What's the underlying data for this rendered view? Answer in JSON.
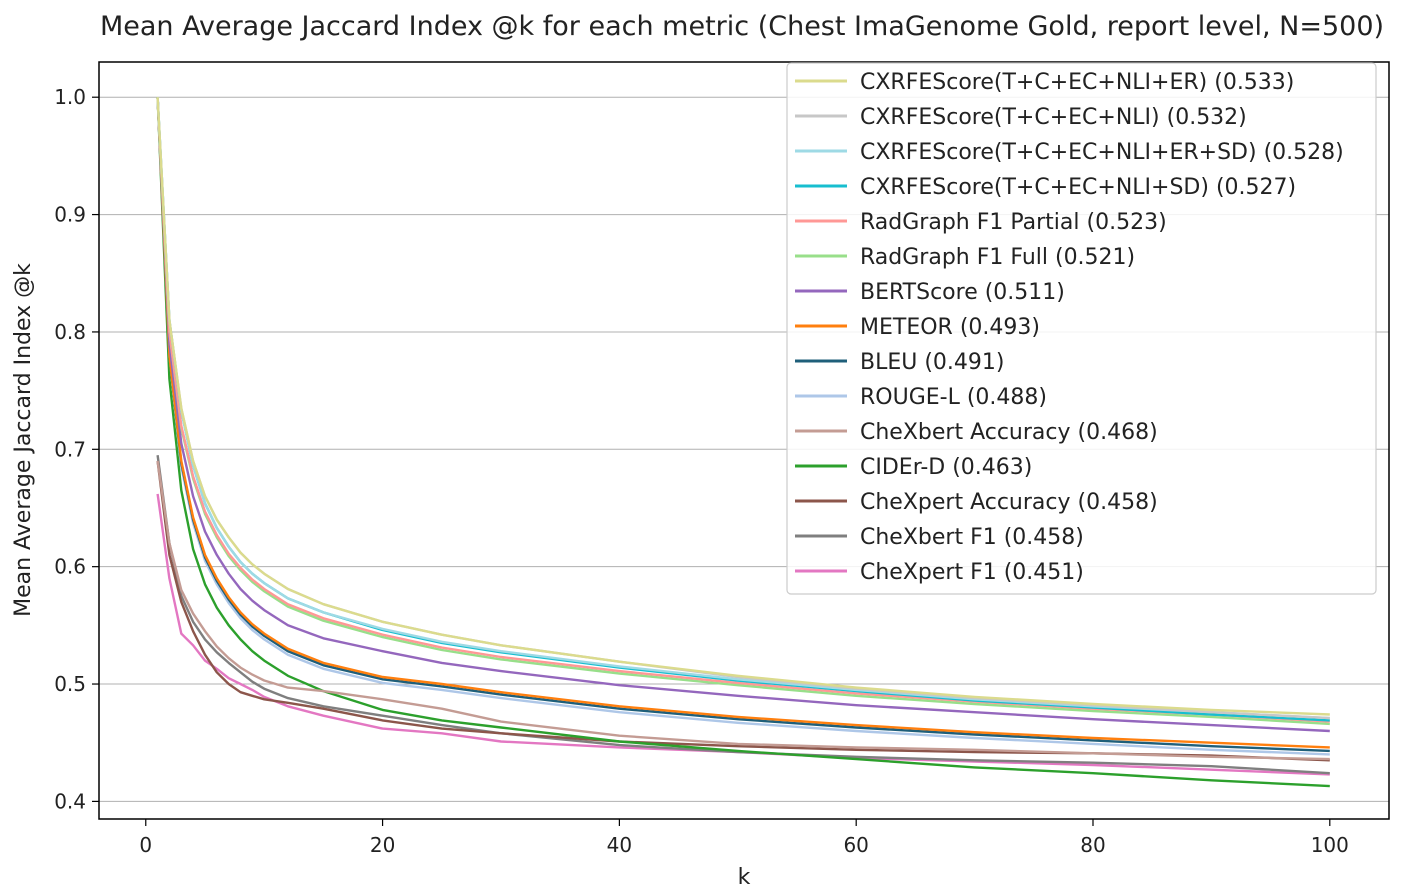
{
  "chart_data": {
    "type": "line",
    "title": "Mean Average Jaccard Index @k for each metric (Chest ImaGenome Gold, report level, N=500)",
    "xlabel": "k",
    "ylabel": "Mean Average Jaccard Index @k",
    "xlim": [
      -3.95,
      105
    ],
    "ylim": [
      0.385,
      1.03
    ],
    "xticks": [
      0,
      20,
      40,
      60,
      80,
      100
    ],
    "xtick_labels": [
      "0",
      "20",
      "40",
      "60",
      "80",
      "100"
    ],
    "yticks": [
      0.4,
      0.5,
      0.6,
      0.7,
      0.8,
      0.9,
      1.0
    ],
    "ytick_labels": [
      "0.4",
      "0.5",
      "0.6",
      "0.7",
      "0.8",
      "0.9",
      "1.0"
    ],
    "grid": "horizontal",
    "legend_position": "top-right",
    "x": [
      1,
      2,
      3,
      4,
      5,
      6,
      7,
      8,
      9,
      10,
      12,
      15,
      20,
      25,
      30,
      40,
      50,
      60,
      70,
      80,
      90,
      100
    ],
    "series": [
      {
        "name": "CXRFEScore(T+C+EC+NLI+ER) (0.533)",
        "color": "#dbdb8d",
        "values": [
          1.0,
          0.81,
          0.735,
          0.69,
          0.66,
          0.64,
          0.625,
          0.612,
          0.602,
          0.594,
          0.581,
          0.568,
          0.553,
          0.542,
          0.533,
          0.519,
          0.507,
          0.497,
          0.489,
          0.483,
          0.478,
          0.474
        ]
      },
      {
        "name": "CXRFEScore(T+C+EC+NLI) (0.532)",
        "color": "#c7c7c7",
        "values": [
          1.0,
          0.81,
          0.735,
          0.69,
          0.66,
          0.64,
          0.625,
          0.612,
          0.602,
          0.594,
          0.581,
          0.568,
          0.553,
          0.542,
          0.533,
          0.519,
          0.506,
          0.496,
          0.488,
          0.482,
          0.476,
          0.471
        ]
      },
      {
        "name": "CXRFEScore(T+C+EC+NLI+ER+SD) (0.528)",
        "color": "#9edae5",
        "values": [
          1.0,
          0.81,
          0.733,
          0.686,
          0.654,
          0.633,
          0.617,
          0.604,
          0.594,
          0.586,
          0.573,
          0.561,
          0.547,
          0.536,
          0.528,
          0.515,
          0.504,
          0.495,
          0.487,
          0.481,
          0.476,
          0.471
        ]
      },
      {
        "name": "CXRFEScore(T+C+EC+NLI+SD) (0.527)",
        "color": "#17becf",
        "values": [
          1.0,
          0.81,
          0.733,
          0.686,
          0.654,
          0.633,
          0.617,
          0.604,
          0.594,
          0.586,
          0.573,
          0.561,
          0.546,
          0.535,
          0.527,
          0.514,
          0.503,
          0.494,
          0.486,
          0.48,
          0.474,
          0.469
        ]
      },
      {
        "name": "RadGraph F1 Partial (0.523)",
        "color": "#ff9896",
        "values": [
          1.0,
          0.8,
          0.72,
          0.677,
          0.647,
          0.627,
          0.611,
          0.599,
          0.589,
          0.581,
          0.568,
          0.556,
          0.542,
          0.531,
          0.523,
          0.511,
          0.501,
          0.492,
          0.485,
          0.479,
          0.474,
          0.468
        ]
      },
      {
        "name": "RadGraph F1 Full (0.521)",
        "color": "#98df8a",
        "values": [
          1.0,
          0.8,
          0.718,
          0.675,
          0.645,
          0.625,
          0.609,
          0.597,
          0.587,
          0.579,
          0.566,
          0.554,
          0.54,
          0.529,
          0.521,
          0.509,
          0.499,
          0.49,
          0.483,
          0.477,
          0.472,
          0.466
        ]
      },
      {
        "name": "BERTScore (0.511)",
        "color": "#9467bd",
        "values": [
          1.0,
          0.79,
          0.705,
          0.66,
          0.63,
          0.61,
          0.594,
          0.581,
          0.571,
          0.563,
          0.55,
          0.539,
          0.528,
          0.518,
          0.511,
          0.499,
          0.49,
          0.482,
          0.476,
          0.47,
          0.465,
          0.46
        ]
      },
      {
        "name": "METEOR (0.493)",
        "color": "#ff7f0e",
        "values": [
          1.0,
          0.78,
          0.69,
          0.642,
          0.61,
          0.59,
          0.574,
          0.561,
          0.551,
          0.543,
          0.53,
          0.518,
          0.506,
          0.5,
          0.493,
          0.481,
          0.472,
          0.465,
          0.459,
          0.454,
          0.45,
          0.446
        ]
      },
      {
        "name": "BLEU (0.491)",
        "color": "#1f5f7a",
        "values": [
          1.0,
          0.78,
          0.688,
          0.64,
          0.608,
          0.588,
          0.572,
          0.559,
          0.549,
          0.541,
          0.528,
          0.516,
          0.504,
          0.498,
          0.491,
          0.479,
          0.47,
          0.463,
          0.457,
          0.452,
          0.447,
          0.443
        ]
      },
      {
        "name": "ROUGE-L (0.488)",
        "color": "#aec7e8",
        "values": [
          1.0,
          0.78,
          0.685,
          0.637,
          0.605,
          0.585,
          0.569,
          0.556,
          0.546,
          0.538,
          0.525,
          0.513,
          0.501,
          0.495,
          0.488,
          0.476,
          0.467,
          0.46,
          0.454,
          0.449,
          0.444,
          0.44
        ]
      },
      {
        "name": "CheXbert Accuracy (0.468)",
        "color": "#c49c94",
        "values": [
          0.69,
          0.62,
          0.58,
          0.56,
          0.545,
          0.532,
          0.522,
          0.514,
          0.508,
          0.503,
          0.497,
          0.494,
          0.487,
          0.479,
          0.468,
          0.456,
          0.449,
          0.446,
          0.444,
          0.441,
          0.438,
          0.436
        ]
      },
      {
        "name": "CIDEr-D (0.463)",
        "color": "#2ca02c",
        "values": [
          1.0,
          0.76,
          0.665,
          0.615,
          0.585,
          0.565,
          0.55,
          0.538,
          0.528,
          0.52,
          0.507,
          0.494,
          0.478,
          0.469,
          0.463,
          0.451,
          0.443,
          0.436,
          0.429,
          0.424,
          0.418,
          0.413
        ]
      },
      {
        "name": "CheXpert Accuracy (0.458)",
        "color": "#8c564b",
        "values": [
          0.69,
          0.61,
          0.57,
          0.545,
          0.525,
          0.51,
          0.5,
          0.493,
          0.49,
          0.487,
          0.484,
          0.479,
          0.469,
          0.462,
          0.458,
          0.451,
          0.447,
          0.444,
          0.442,
          0.441,
          0.439,
          0.435
        ]
      },
      {
        "name": "CheXbert F1 (0.458)",
        "color": "#7f7f7f",
        "values": [
          0.695,
          0.62,
          0.575,
          0.553,
          0.538,
          0.527,
          0.518,
          0.51,
          0.502,
          0.496,
          0.488,
          0.481,
          0.473,
          0.465,
          0.458,
          0.448,
          0.442,
          0.438,
          0.435,
          0.433,
          0.43,
          0.424
        ]
      },
      {
        "name": "CheXpert F1 (0.451)",
        "color": "#e377c2",
        "values": [
          0.662,
          0.59,
          0.543,
          0.533,
          0.52,
          0.513,
          0.505,
          0.5,
          0.495,
          0.489,
          0.481,
          0.473,
          0.462,
          0.458,
          0.451,
          0.446,
          0.442,
          0.437,
          0.434,
          0.431,
          0.427,
          0.423
        ]
      }
    ]
  }
}
